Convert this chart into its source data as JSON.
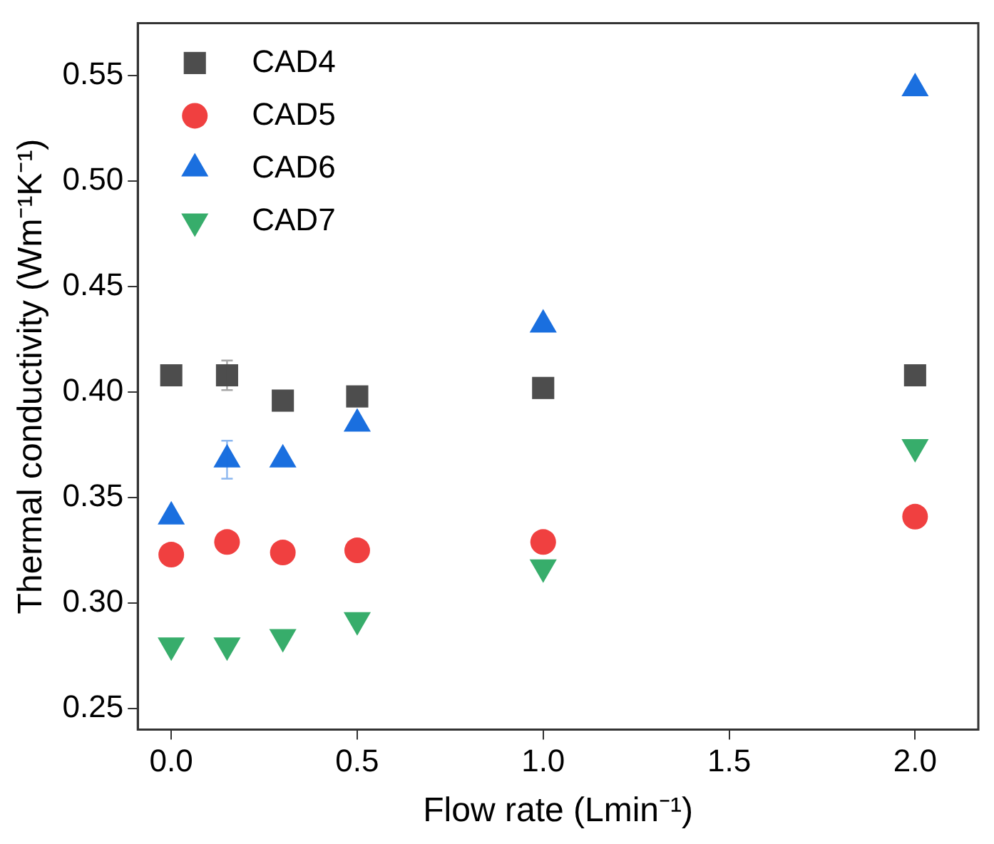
{
  "chart_data": {
    "type": "scatter",
    "xlabel": "Flow rate (Lmin⁻¹)",
    "ylabel": "Thermal conductivity (Wm⁻¹K⁻¹)",
    "x": [
      0,
      0.15,
      0.3,
      0.5,
      1.0,
      2.0
    ],
    "xlim": [
      -0.09,
      2.17
    ],
    "xticks": [
      {
        "value": 0,
        "label": "0.0"
      },
      {
        "value": 0.5,
        "label": "0.5"
      },
      {
        "value": 1,
        "label": "1.0"
      },
      {
        "value": 1.5,
        "label": "1.5"
      },
      {
        "value": 2,
        "label": "2.0"
      }
    ],
    "ylim": [
      0.24,
      0.575
    ],
    "yticks": [
      0.25,
      {
        "value": 0.3,
        "label": "0.30"
      },
      0.35,
      {
        "value": 0.4,
        "label": "0.40"
      },
      0.45,
      {
        "value": 0.5,
        "label": "0.50"
      },
      0.55
    ],
    "grid": false,
    "legend": "top left",
    "series": [
      {
        "name": "CAD4",
        "color": "#4d4d4d",
        "marker": "square",
        "values": [
          0.408,
          0.408,
          0.396,
          0.398,
          0.402,
          0.408
        ],
        "errors": [
          null,
          0.007,
          null,
          null,
          null,
          null
        ]
      },
      {
        "name": "CAD5",
        "color": "#f04040",
        "marker": "circle",
        "values": [
          0.323,
          0.329,
          0.324,
          0.325,
          0.329,
          0.341
        ]
      },
      {
        "name": "CAD6",
        "color": "#1a6fdf",
        "marker": "triangle",
        "values": [
          0.341,
          0.368,
          0.368,
          0.385,
          0.432,
          0.544
        ],
        "errors": [
          null,
          0.009,
          null,
          null,
          null,
          null
        ]
      },
      {
        "name": "CAD7",
        "color": "#37ad6b",
        "marker": "triangle-down",
        "values": [
          0.28,
          0.28,
          0.284,
          0.292,
          0.317,
          0.374
        ]
      }
    ]
  }
}
